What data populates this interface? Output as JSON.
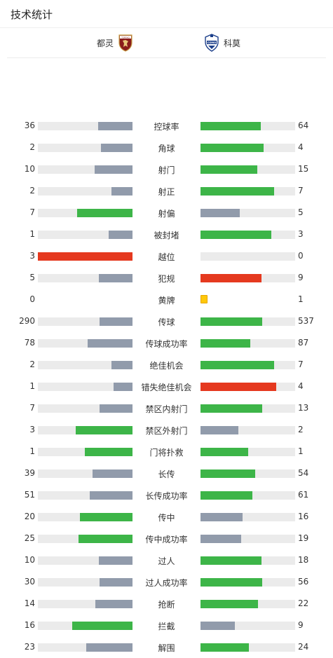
{
  "page": {
    "title": "技术统计"
  },
  "teams": {
    "home": "都灵",
    "away": "科莫",
    "home_logo_text": "TORINO",
    "away_logo_text": "COMO"
  },
  "colors": {
    "leader": "#3db548",
    "trailer": "#919bab",
    "card_red": "#e5391f",
    "card_yellow": "#ffc80a",
    "track": "#ebebeb"
  },
  "stats": [
    {
      "label": "控球率",
      "home": "36",
      "away": "64"
    },
    {
      "label": "角球",
      "home": "2",
      "away": "4"
    },
    {
      "label": "射门",
      "home": "10",
      "away": "15"
    },
    {
      "label": "射正",
      "home": "2",
      "away": "7"
    },
    {
      "label": "射偏",
      "home": "7",
      "away": "5"
    },
    {
      "label": "被封堵",
      "home": "1",
      "away": "3"
    },
    {
      "label": "越位",
      "home": "3",
      "away": "0"
    },
    {
      "label": "犯规",
      "home": "5",
      "away": "9"
    },
    {
      "label": "黄牌",
      "home": "0",
      "away": "1"
    },
    {
      "label": "传球",
      "home": "290",
      "away": "537"
    },
    {
      "label": "传球成功率",
      "home": "78",
      "away": "87"
    },
    {
      "label": "绝佳机会",
      "home": "2",
      "away": "7"
    },
    {
      "label": "错失绝佳机会",
      "home": "1",
      "away": "4"
    },
    {
      "label": "禁区内射门",
      "home": "7",
      "away": "13"
    },
    {
      "label": "禁区外射门",
      "home": "3",
      "away": "2"
    },
    {
      "label": "门将扑救",
      "home": "1",
      "away": "1"
    },
    {
      "label": "长传",
      "home": "39",
      "away": "54"
    },
    {
      "label": "长传成功率",
      "home": "51",
      "away": "61"
    },
    {
      "label": "传中",
      "home": "20",
      "away": "16"
    },
    {
      "label": "传中成功率",
      "home": "25",
      "away": "19"
    },
    {
      "label": "过人",
      "home": "10",
      "away": "18"
    },
    {
      "label": "过人成功率",
      "home": "30",
      "away": "56"
    },
    {
      "label": "抢断",
      "home": "14",
      "away": "22"
    },
    {
      "label": "拦截",
      "home": "16",
      "away": "9"
    },
    {
      "label": "解围",
      "home": "23",
      "away": "24"
    }
  ],
  "bars": [
    {
      "home_fill": 0.36,
      "home_color": "gray",
      "away_fill": 0.64,
      "away_color": "green"
    },
    {
      "home_fill": 0.333,
      "home_color": "gray",
      "away_fill": 0.667,
      "away_color": "green"
    },
    {
      "home_fill": 0.4,
      "home_color": "gray",
      "away_fill": 0.6,
      "away_color": "green"
    },
    {
      "home_fill": 0.222,
      "home_color": "gray",
      "away_fill": 0.778,
      "away_color": "green"
    },
    {
      "home_fill": 0.583,
      "home_color": "green",
      "away_fill": 0.417,
      "away_color": "gray"
    },
    {
      "home_fill": 0.25,
      "home_color": "gray",
      "away_fill": 0.75,
      "away_color": "green"
    },
    {
      "home_fill": 1.0,
      "home_color": "red",
      "away_fill": 0.0,
      "away_color": "gray"
    },
    {
      "home_fill": 0.357,
      "home_color": "gray",
      "away_fill": 0.643,
      "away_color": "red"
    },
    {
      "home_fill": 0.0,
      "home_color": "none",
      "away_fill": 0.0,
      "away_color": "yellow"
    },
    {
      "home_fill": 0.351,
      "home_color": "gray",
      "away_fill": 0.649,
      "away_color": "green"
    },
    {
      "home_fill": 0.473,
      "home_color": "gray",
      "away_fill": 0.527,
      "away_color": "green"
    },
    {
      "home_fill": 0.222,
      "home_color": "gray",
      "away_fill": 0.778,
      "away_color": "green"
    },
    {
      "home_fill": 0.2,
      "home_color": "gray",
      "away_fill": 0.8,
      "away_color": "red"
    },
    {
      "home_fill": 0.35,
      "home_color": "gray",
      "away_fill": 0.65,
      "away_color": "green"
    },
    {
      "home_fill": 0.6,
      "home_color": "green",
      "away_fill": 0.4,
      "away_color": "gray"
    },
    {
      "home_fill": 0.5,
      "home_color": "green",
      "away_fill": 0.5,
      "away_color": "green"
    },
    {
      "home_fill": 0.419,
      "home_color": "gray",
      "away_fill": 0.581,
      "away_color": "green"
    },
    {
      "home_fill": 0.455,
      "home_color": "gray",
      "away_fill": 0.545,
      "away_color": "green"
    },
    {
      "home_fill": 0.556,
      "home_color": "green",
      "away_fill": 0.444,
      "away_color": "gray"
    },
    {
      "home_fill": 0.568,
      "home_color": "green",
      "away_fill": 0.432,
      "away_color": "gray"
    },
    {
      "home_fill": 0.357,
      "home_color": "gray",
      "away_fill": 0.643,
      "away_color": "green"
    },
    {
      "home_fill": 0.349,
      "home_color": "gray",
      "away_fill": 0.651,
      "away_color": "green"
    },
    {
      "home_fill": 0.389,
      "home_color": "gray",
      "away_fill": 0.611,
      "away_color": "green"
    },
    {
      "home_fill": 0.64,
      "home_color": "green",
      "away_fill": 0.36,
      "away_color": "gray"
    },
    {
      "home_fill": 0.489,
      "home_color": "gray",
      "away_fill": 0.511,
      "away_color": "green"
    }
  ]
}
